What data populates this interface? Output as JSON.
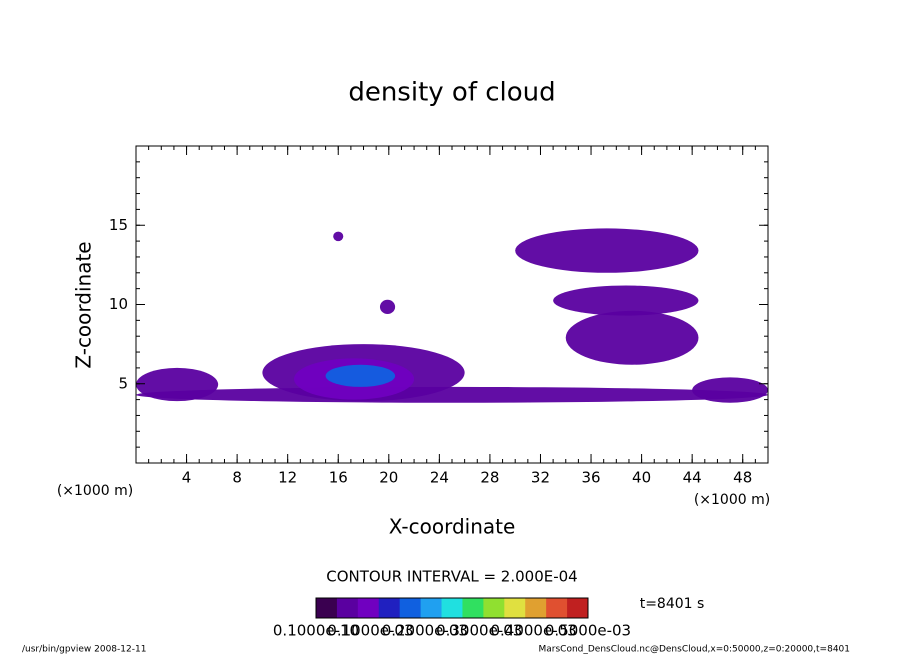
{
  "chart_data": {
    "type": "contour",
    "title": "density of cloud",
    "x_label": "X-coordinate",
    "y_label": "Z-coordinate",
    "x_unit_left": "(×1000 m)",
    "x_unit_right": "(×1000 m)",
    "xlim": [
      0,
      50
    ],
    "ylim": [
      0,
      20
    ],
    "xticks": [
      4,
      8,
      12,
      16,
      20,
      24,
      28,
      32,
      36,
      40,
      44,
      48
    ],
    "yticks": [
      5,
      10,
      15
    ],
    "xminor": 1,
    "yminor": 1,
    "contour_interval": "CONTOUR INTERVAL = 2.000E-04",
    "time_label": "t=8401 s",
    "colorbar": {
      "range": [
        0,
        0.0005
      ],
      "colors": [
        "#3a0050",
        "#5a00a0",
        "#7000c0",
        "#2020c0",
        "#1060e0",
        "#20a0f0",
        "#20e0e0",
        "#30e060",
        "#90e030",
        "#e0e040",
        "#e0a030",
        "#e05030",
        "#c02020"
      ],
      "labels": [
        "0.1000e-10",
        "0.1000e-03",
        "0.2000e-03",
        "0.3000e-03",
        "0.4000e-03",
        "0.5000e-03"
      ]
    },
    "cloud_regions": [
      {
        "x": [
          0,
          50
        ],
        "z": [
          3.8,
          4.8
        ],
        "level": 4e-05
      },
      {
        "x": [
          0,
          6.5
        ],
        "z": [
          3.9,
          6
        ],
        "level": 4e-05
      },
      {
        "x": [
          10,
          26
        ],
        "z": [
          3.9,
          7.5
        ],
        "level": 4e-05
      },
      {
        "x": [
          12.5,
          22
        ],
        "z": [
          4,
          6.6
        ],
        "level": 0.0001
      },
      {
        "x": [
          15,
          20.5
        ],
        "z": [
          4.8,
          6.2
        ],
        "level": 0.00018
      },
      {
        "x": [
          30,
          44.5
        ],
        "z": [
          12,
          14.8
        ],
        "level": 4e-05
      },
      {
        "x": [
          33,
          44.5
        ],
        "z": [
          9.3,
          11.2
        ],
        "level": 4e-05
      },
      {
        "x": [
          34,
          44.5
        ],
        "z": [
          6.2,
          9.6
        ],
        "level": 4e-05
      },
      {
        "x": [
          15.6,
          16.4
        ],
        "z": [
          14,
          14.6
        ],
        "level": 4e-05
      },
      {
        "x": [
          19.3,
          20.5
        ],
        "z": [
          9.4,
          10.3
        ],
        "level": 4e-05
      },
      {
        "x": [
          44,
          50
        ],
        "z": [
          3.8,
          5.4
        ],
        "level": 4e-05
      }
    ],
    "footer_left": "/usr/bin/gpview  2008-12-11",
    "footer_right": "MarsCond_DensCloud.nc@DensCloud,x=0:50000,z=0:20000,t=8401"
  }
}
